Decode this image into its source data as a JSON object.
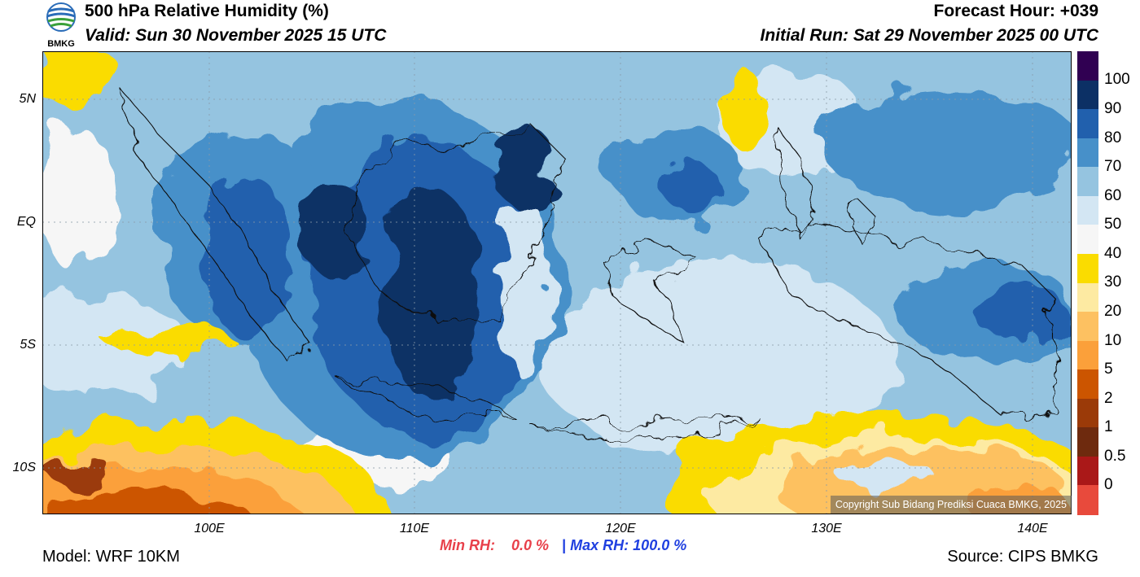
{
  "header": {
    "title": "500 hPa Relative Humidity (%)",
    "valid": "Valid: Sun 30 November 2025 15 UTC",
    "forecast_hour": "Forecast Hour: +039",
    "initial_run": "Initial Run: Sat 29 November 2025 00 UTC",
    "logo_text": "BMKG"
  },
  "map": {
    "y_ticks": [
      "5N",
      "EQ",
      "5S",
      "10S"
    ],
    "x_ticks": [
      "100E",
      "110E",
      "120E",
      "130E",
      "140E"
    ],
    "copyright": "Copyright Sub Bidang Prediksi Cuaca BMKG, 2025"
  },
  "legend": {
    "labels": [
      "100",
      "90",
      "80",
      "70",
      "60",
      "50",
      "40",
      "30",
      "20",
      "10",
      "5",
      "2",
      "1",
      "0.5",
      "0"
    ],
    "colors": [
      "#300052",
      "#0c3065",
      "#2160ad",
      "#4790c9",
      "#95c4e0",
      "#d3e6f3",
      "#f6f6f6",
      "#fadc00",
      "#fdeaa2",
      "#fdc161",
      "#fba03a",
      "#cc5500",
      "#9b3a08",
      "#6e2a0e",
      "#aa1818",
      "#e84a3c"
    ]
  },
  "stats": {
    "min_label": "Min RH:",
    "min_value": "0.0 %",
    "separator": "|",
    "max_label": "Max RH:",
    "max_value": "100.0 %",
    "min_color": "#e8404a",
    "max_color": "#2040e0"
  },
  "footer": {
    "model": "Model: WRF 10KM",
    "source": "Source: CIPS BMKG"
  }
}
